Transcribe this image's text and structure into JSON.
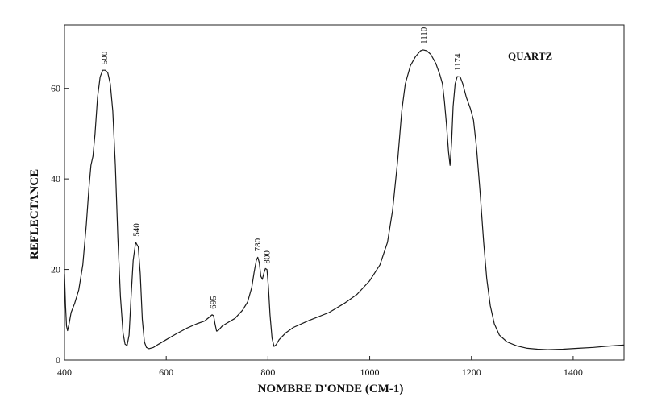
{
  "chart_data": {
    "type": "line",
    "title": "",
    "series_name": "QUARTZ",
    "xlabel": "NOMBRE D'ONDE (CM-1)",
    "ylabel": "REFLECTANCE",
    "xlim": [
      400,
      1500
    ],
    "ylim": [
      0,
      74
    ],
    "x_ticks": [
      400,
      600,
      800,
      1000,
      1200,
      1400
    ],
    "y_ticks": [
      0,
      20,
      40,
      60
    ],
    "grid": false,
    "legend": "none",
    "line_color": "#1a1a1a",
    "peak_labels": [
      {
        "text": "500",
        "x": 478,
        "y": 64
      },
      {
        "text": "540",
        "x": 540,
        "y": 26
      },
      {
        "text": "695",
        "x": 692,
        "y": 10
      },
      {
        "text": "780",
        "x": 779,
        "y": 22.7
      },
      {
        "text": "800",
        "x": 797,
        "y": 20
      },
      {
        "text": "1110",
        "x": 1105,
        "y": 68.5
      },
      {
        "text": "1174",
        "x": 1172,
        "y": 62.6
      }
    ],
    "series": [
      {
        "name": "QUARTZ",
        "points": [
          [
            400,
            19
          ],
          [
            402,
            12
          ],
          [
            404,
            7.5
          ],
          [
            406,
            6.5
          ],
          [
            409,
            8
          ],
          [
            413,
            10.5
          ],
          [
            420,
            12.5
          ],
          [
            428,
            15.5
          ],
          [
            436,
            21
          ],
          [
            443,
            30
          ],
          [
            448,
            38
          ],
          [
            452,
            43
          ],
          [
            456,
            45
          ],
          [
            460,
            50
          ],
          [
            465,
            58
          ],
          [
            470,
            62.5
          ],
          [
            475,
            64
          ],
          [
            480,
            64
          ],
          [
            485,
            63.5
          ],
          [
            490,
            61
          ],
          [
            495,
            55
          ],
          [
            500,
            43
          ],
          [
            505,
            27
          ],
          [
            510,
            14
          ],
          [
            515,
            6
          ],
          [
            519,
            3.5
          ],
          [
            523,
            3.2
          ],
          [
            527,
            5.5
          ],
          [
            531,
            14
          ],
          [
            535,
            22
          ],
          [
            540,
            26
          ],
          [
            545,
            25
          ],
          [
            549,
            19
          ],
          [
            553,
            9
          ],
          [
            557,
            4
          ],
          [
            561,
            2.8
          ],
          [
            566,
            2.5
          ],
          [
            575,
            2.8
          ],
          [
            585,
            3.5
          ],
          [
            600,
            4.5
          ],
          [
            620,
            5.8
          ],
          [
            640,
            7
          ],
          [
            660,
            8
          ],
          [
            675,
            8.6
          ],
          [
            685,
            9.5
          ],
          [
            690,
            10
          ],
          [
            693,
            9.8
          ],
          [
            696,
            8
          ],
          [
            699,
            6.4
          ],
          [
            702,
            6.5
          ],
          [
            710,
            7.5
          ],
          [
            720,
            8.2
          ],
          [
            735,
            9.2
          ],
          [
            750,
            11
          ],
          [
            760,
            12.8
          ],
          [
            768,
            16
          ],
          [
            773,
            19.5
          ],
          [
            777,
            22
          ],
          [
            780,
            22.7
          ],
          [
            783,
            21.5
          ],
          [
            786,
            18.5
          ],
          [
            789,
            17.8
          ],
          [
            792,
            19.2
          ],
          [
            795,
            20.2
          ],
          [
            798,
            20
          ],
          [
            801,
            16
          ],
          [
            804,
            10
          ],
          [
            808,
            4.8
          ],
          [
            812,
            3
          ],
          [
            816,
            3.4
          ],
          [
            822,
            4.5
          ],
          [
            835,
            6
          ],
          [
            850,
            7.2
          ],
          [
            880,
            8.7
          ],
          [
            920,
            10.5
          ],
          [
            950,
            12.5
          ],
          [
            975,
            14.5
          ],
          [
            1000,
            17.5
          ],
          [
            1020,
            21
          ],
          [
            1035,
            26
          ],
          [
            1045,
            33
          ],
          [
            1055,
            44
          ],
          [
            1063,
            55
          ],
          [
            1070,
            61
          ],
          [
            1080,
            65
          ],
          [
            1090,
            67
          ],
          [
            1100,
            68.3
          ],
          [
            1105,
            68.5
          ],
          [
            1112,
            68.3
          ],
          [
            1120,
            67.5
          ],
          [
            1130,
            65.5
          ],
          [
            1138,
            63
          ],
          [
            1143,
            61
          ],
          [
            1147,
            57
          ],
          [
            1151,
            52
          ],
          [
            1155,
            46
          ],
          [
            1158,
            43
          ],
          [
            1161,
            48
          ],
          [
            1164,
            56
          ],
          [
            1168,
            61
          ],
          [
            1172,
            62.6
          ],
          [
            1178,
            62.5
          ],
          [
            1183,
            61
          ],
          [
            1190,
            58
          ],
          [
            1198,
            55.5
          ],
          [
            1204,
            53
          ],
          [
            1210,
            47
          ],
          [
            1217,
            37
          ],
          [
            1224,
            26
          ],
          [
            1230,
            18
          ],
          [
            1237,
            12
          ],
          [
            1245,
            8
          ],
          [
            1255,
            5.5
          ],
          [
            1270,
            4
          ],
          [
            1290,
            3.1
          ],
          [
            1310,
            2.6
          ],
          [
            1330,
            2.4
          ],
          [
            1350,
            2.3
          ],
          [
            1380,
            2.4
          ],
          [
            1410,
            2.6
          ],
          [
            1440,
            2.8
          ],
          [
            1470,
            3.1
          ],
          [
            1500,
            3.3
          ]
        ]
      }
    ]
  }
}
